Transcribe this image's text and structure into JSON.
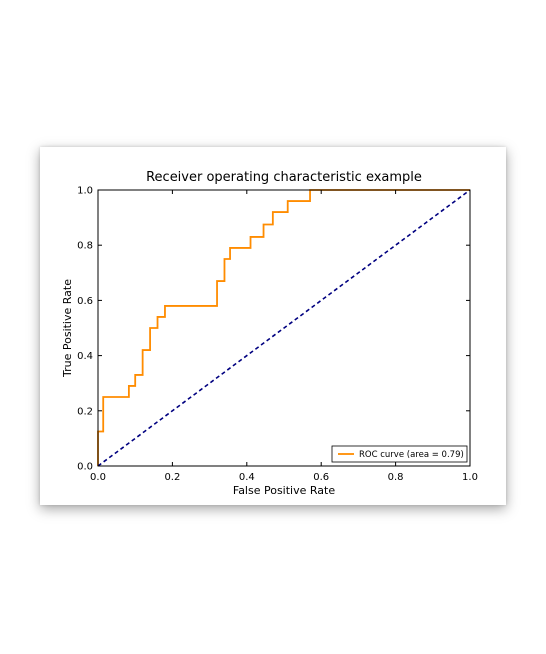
{
  "chart_data": {
    "type": "line",
    "title": "Receiver operating characteristic example",
    "xlabel": "False Positive Rate",
    "ylabel": "True Positive Rate",
    "xlim": [
      0.0,
      1.0
    ],
    "ylim": [
      0.0,
      1.0
    ],
    "xticks": [
      "0.0",
      "0.2",
      "0.4",
      "0.6",
      "0.8",
      "1.0"
    ],
    "yticks": [
      "0.0",
      "0.2",
      "0.4",
      "0.6",
      "0.8",
      "1.0"
    ],
    "grid": false,
    "legend_position": "lower-right",
    "series": [
      {
        "name": "ROC curve (area = 0.79)",
        "color": "#ff8c00",
        "style": "solid",
        "x": [
          0.0,
          0.0,
          0.0,
          0.014,
          0.014,
          0.042,
          0.042,
          0.083,
          0.083,
          0.1,
          0.1,
          0.12,
          0.12,
          0.14,
          0.14,
          0.16,
          0.16,
          0.18,
          0.18,
          0.32,
          0.32,
          0.34,
          0.34,
          0.355,
          0.355,
          0.41,
          0.41,
          0.445,
          0.445,
          0.47,
          0.47,
          0.51,
          0.51,
          0.57,
          0.57,
          1.0
        ],
        "y": [
          0.0,
          0.0,
          0.125,
          0.125,
          0.25,
          0.25,
          0.25,
          0.25,
          0.29,
          0.29,
          0.33,
          0.33,
          0.42,
          0.42,
          0.5,
          0.5,
          0.54,
          0.54,
          0.58,
          0.58,
          0.67,
          0.67,
          0.75,
          0.75,
          0.79,
          0.79,
          0.83,
          0.83,
          0.875,
          0.875,
          0.92,
          0.92,
          0.96,
          0.96,
          1.0,
          1.0
        ]
      },
      {
        "name": "",
        "color": "#000080",
        "style": "dashed",
        "x": [
          0.0,
          1.0
        ],
        "y": [
          0.0,
          1.0
        ]
      }
    ]
  }
}
